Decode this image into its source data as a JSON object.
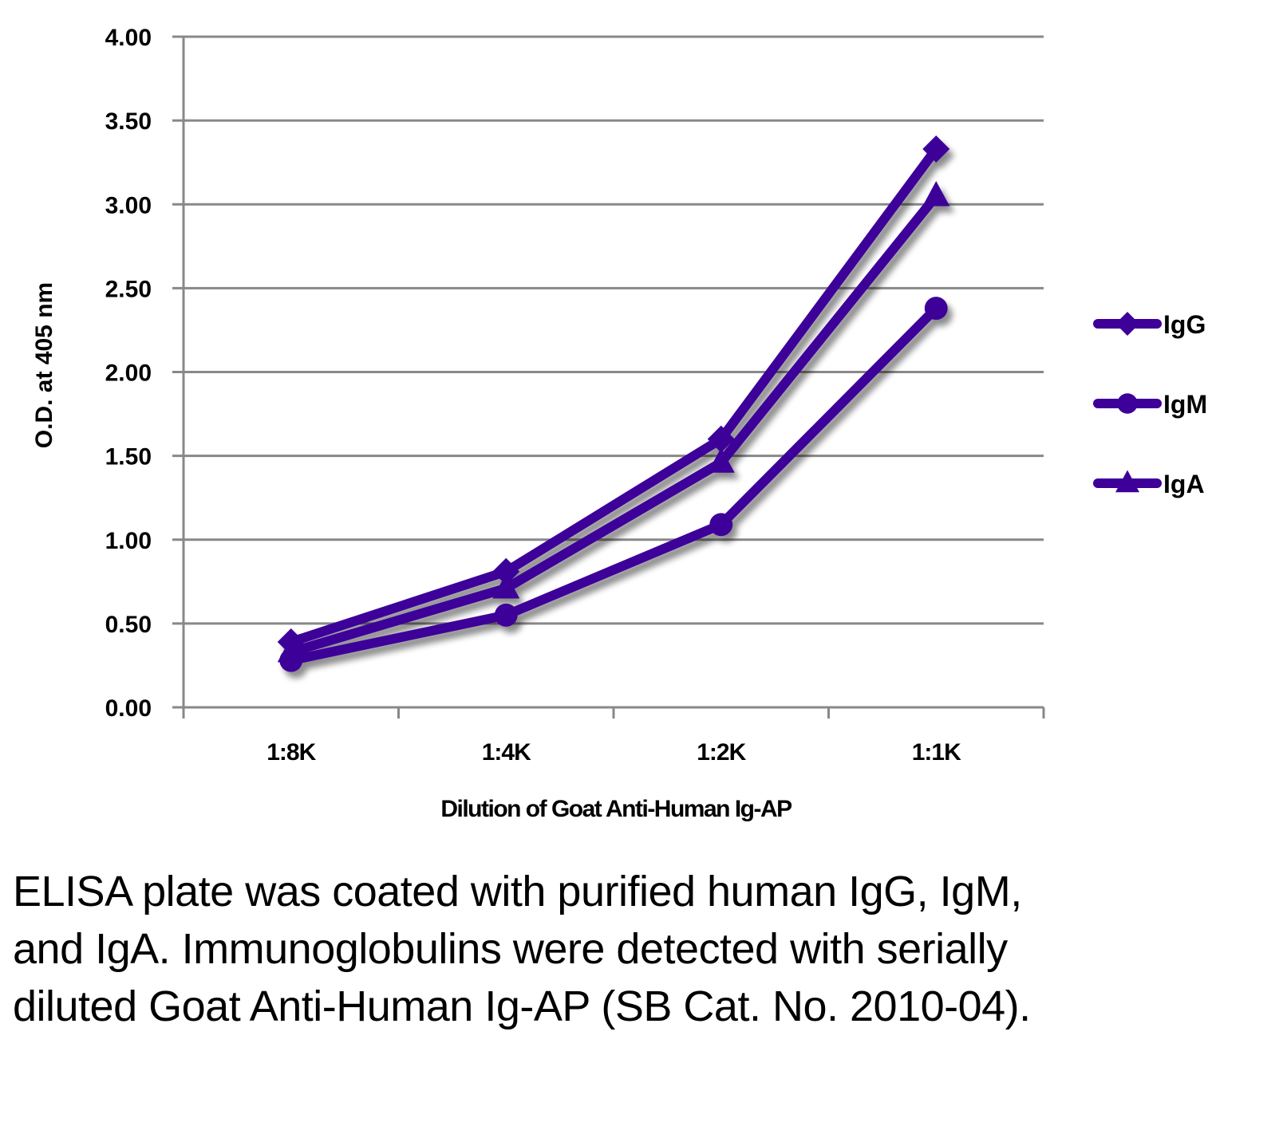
{
  "chart_data": {
    "type": "line",
    "title": "",
    "xlabel": "Dilution of Goat Anti-Human Ig-AP",
    "ylabel": "O.D. at 405 nm",
    "categories": [
      "1:8K",
      "1:4K",
      "1:2K",
      "1:1K"
    ],
    "ylim": [
      0,
      4
    ],
    "yticks": [
      0,
      0.5,
      1,
      1.5,
      2,
      2.5,
      3,
      3.5,
      4
    ],
    "ytick_labels": [
      "0.00",
      "0.50",
      "1.00",
      "1.50",
      "2.00",
      "2.50",
      "3.00",
      "3.50",
      "4.00"
    ],
    "grid": true,
    "legend_position": "right",
    "series": [
      {
        "name": "IgG",
        "marker": "diamond",
        "color": "#3d0099",
        "values": [
          0.39,
          0.81,
          1.6,
          3.33
        ]
      },
      {
        "name": "IgM",
        "marker": "circle",
        "color": "#3d0099",
        "values": [
          0.28,
          0.55,
          1.09,
          2.38
        ]
      },
      {
        "name": "IgA",
        "marker": "triangle",
        "color": "#3d0099",
        "values": [
          0.33,
          0.71,
          1.46,
          3.05
        ]
      }
    ]
  },
  "caption": "ELISA plate was coated with purified human IgG, IgM, and IgA.  Immunoglobulins were detected with serially diluted Goat Anti-Human Ig-AP (SB Cat. No. 2010-04).",
  "colors": {
    "series": "#3d0099",
    "grid": "#888888",
    "text": "#000000"
  }
}
